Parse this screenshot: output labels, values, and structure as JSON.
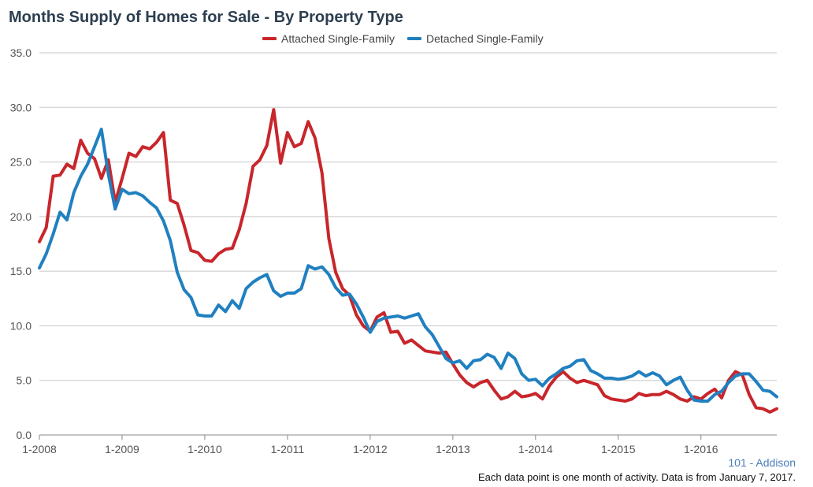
{
  "title": "Months Supply of Homes for Sale - By Property Type",
  "area_label": "101 - Addison",
  "footnote": "Each data point is one month of activity. Data is from January 7, 2017.",
  "chart_data": {
    "type": "line",
    "title": "Months Supply of Homes for Sale - By Property Type",
    "xlabel": "",
    "ylabel": "",
    "ylim": [
      0,
      35
    ],
    "yticks": [
      0,
      5,
      10,
      15,
      20,
      25,
      30,
      35
    ],
    "ytick_labels": [
      "0.0",
      "5.0",
      "10.0",
      "15.0",
      "20.0",
      "25.0",
      "30.0",
      "35.0"
    ],
    "xtick_labels": [
      "1-2008",
      "1-2009",
      "1-2010",
      "1-2011",
      "1-2012",
      "1-2013",
      "1-2014",
      "1-2015",
      "1-2016"
    ],
    "x_start": "1-2008",
    "x_end": "12-2016",
    "grid": true,
    "legend_position": "top-center",
    "series": [
      {
        "name": "Attached Single-Family",
        "color": "#c8262b",
        "values": [
          17.7,
          19.0,
          23.7,
          23.8,
          24.8,
          24.4,
          27.0,
          25.8,
          25.3,
          23.5,
          25.2,
          21.3,
          23.5,
          25.8,
          25.5,
          26.4,
          26.2,
          26.8,
          27.7,
          21.5,
          21.2,
          19.2,
          16.9,
          16.7,
          16.0,
          15.9,
          16.6,
          17.0,
          17.1,
          18.8,
          21.2,
          24.6,
          25.2,
          26.5,
          29.8,
          24.9,
          27.7,
          26.4,
          26.7,
          28.7,
          27.2,
          24.0,
          18.0,
          14.9,
          13.4,
          12.8,
          11.0,
          10.0,
          9.5,
          10.8,
          11.2,
          9.4,
          9.5,
          8.4,
          8.7,
          8.2,
          7.7,
          7.6,
          7.5,
          7.6,
          6.5,
          5.5,
          4.8,
          4.4,
          4.8,
          5.0,
          4.1,
          3.3,
          3.5,
          4.0,
          3.5,
          3.6,
          3.8,
          3.3,
          4.5,
          5.3,
          5.8,
          5.2,
          4.8,
          5.0,
          4.8,
          4.6,
          3.6,
          3.3,
          3.2,
          3.1,
          3.3,
          3.8,
          3.6,
          3.7,
          3.7,
          4.0,
          3.7,
          3.3,
          3.1,
          3.5,
          3.3,
          3.8,
          4.2,
          3.4,
          5.0,
          5.8,
          5.5,
          3.7,
          2.5,
          2.4,
          2.1,
          2.4
        ]
      },
      {
        "name": "Detached Single-Family",
        "color": "#2080c0",
        "values": [
          15.3,
          16.6,
          18.4,
          20.4,
          19.7,
          22.2,
          23.7,
          24.8,
          26.4,
          28.0,
          23.9,
          20.7,
          22.5,
          22.1,
          22.2,
          21.9,
          21.3,
          20.8,
          19.6,
          17.8,
          14.9,
          13.3,
          12.6,
          11.0,
          10.9,
          10.9,
          11.9,
          11.3,
          12.3,
          11.6,
          13.4,
          14.0,
          14.4,
          14.7,
          13.2,
          12.7,
          13.0,
          13.0,
          13.4,
          15.5,
          15.2,
          15.4,
          14.7,
          13.5,
          12.8,
          12.9,
          12.0,
          10.8,
          9.4,
          10.4,
          10.7,
          10.8,
          10.9,
          10.7,
          10.9,
          11.1,
          9.9,
          9.2,
          8.1,
          7.0,
          6.6,
          6.8,
          6.1,
          6.8,
          6.9,
          7.4,
          7.1,
          6.1,
          7.5,
          7.0,
          5.6,
          5.0,
          5.1,
          4.5,
          5.2,
          5.6,
          6.1,
          6.3,
          6.8,
          6.9,
          5.9,
          5.6,
          5.2,
          5.2,
          5.1,
          5.2,
          5.4,
          5.8,
          5.4,
          5.7,
          5.4,
          4.6,
          5.0,
          5.3,
          4.1,
          3.2,
          3.1,
          3.1,
          3.7,
          4.0,
          4.8,
          5.4,
          5.6,
          5.6,
          4.9,
          4.1,
          4.0,
          3.5
        ]
      }
    ]
  }
}
